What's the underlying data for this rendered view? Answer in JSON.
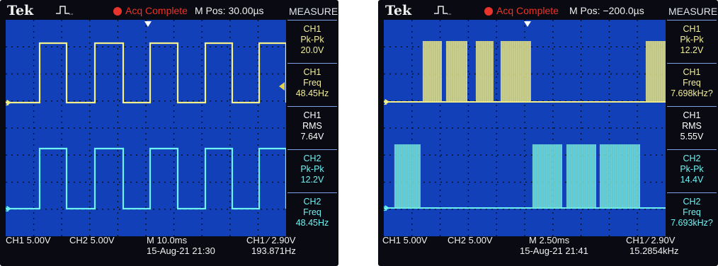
{
  "left": {
    "brand": "Tek",
    "acq_status": "Acq Complete",
    "m_pos": "M Pos: 30.00µs",
    "measure_title": "MEASURE",
    "measurements": [
      {
        "l1": "CH1",
        "l2": "Pk-Pk",
        "l3": "20.0V",
        "channel": "ch1"
      },
      {
        "l1": "CH1",
        "l2": "Freq",
        "l3": "48.45Hz",
        "channel": "ch1"
      },
      {
        "l1": "CH1",
        "l2": "RMS",
        "l3": "7.64V",
        "channel": "mid"
      },
      {
        "l1": "CH2",
        "l2": "Pk-Pk",
        "l3": "12.2V",
        "channel": "ch2"
      },
      {
        "l1": "CH2",
        "l2": "Freq",
        "l3": "48.45Hz",
        "channel": "ch2"
      }
    ],
    "ch1_scale": "CH1  5.00V",
    "ch2_scale": "CH2  5.00V",
    "timebase": "M 10.0ms",
    "trigger": "CH1 ∕ 2.90V",
    "datetime": "15-Aug-21 21:30",
    "trigger_freq": "193.871Hz",
    "ch1_marker": "1",
    "ch2_marker": "2"
  },
  "right": {
    "brand": "Tek",
    "acq_status": "Acq Complete",
    "m_pos": "M Pos: −200.0µs",
    "measure_title": "MEASURE",
    "measurements": [
      {
        "l1": "CH1",
        "l2": "Pk-Pk",
        "l3": "12.2V",
        "channel": "ch1"
      },
      {
        "l1": "CH1",
        "l2": "Freq",
        "l3": "7.698kHz?",
        "channel": "ch1"
      },
      {
        "l1": "CH1",
        "l2": "RMS",
        "l3": "5.55V",
        "channel": "mid"
      },
      {
        "l1": "CH2",
        "l2": "Pk-Pk",
        "l3": "14.4V",
        "channel": "ch2"
      },
      {
        "l1": "CH2",
        "l2": "Freq",
        "l3": "7.693kHz?",
        "channel": "ch2"
      }
    ],
    "ch1_scale": "CH1  5.00V",
    "ch2_scale": "CH2  5.00V",
    "timebase": "M 2.50ms",
    "trigger": "CH1 ∕ 2.90V",
    "datetime": "15-Aug-21 21:41",
    "trigger_freq": "15.2854kHz",
    "ch1_marker": "1",
    "ch2_marker": "2"
  },
  "colors": {
    "ch1_trace": "#f4f08c",
    "ch2_trace": "#6ff2f2",
    "screen_bg": "#1240b8",
    "acq_red": "#e8342a"
  },
  "icons": {
    "trigger_mode": "pulse-edge-icon",
    "trigger_position": "down-arrow-icon",
    "channel_marker": "right-arrow-icon"
  }
}
